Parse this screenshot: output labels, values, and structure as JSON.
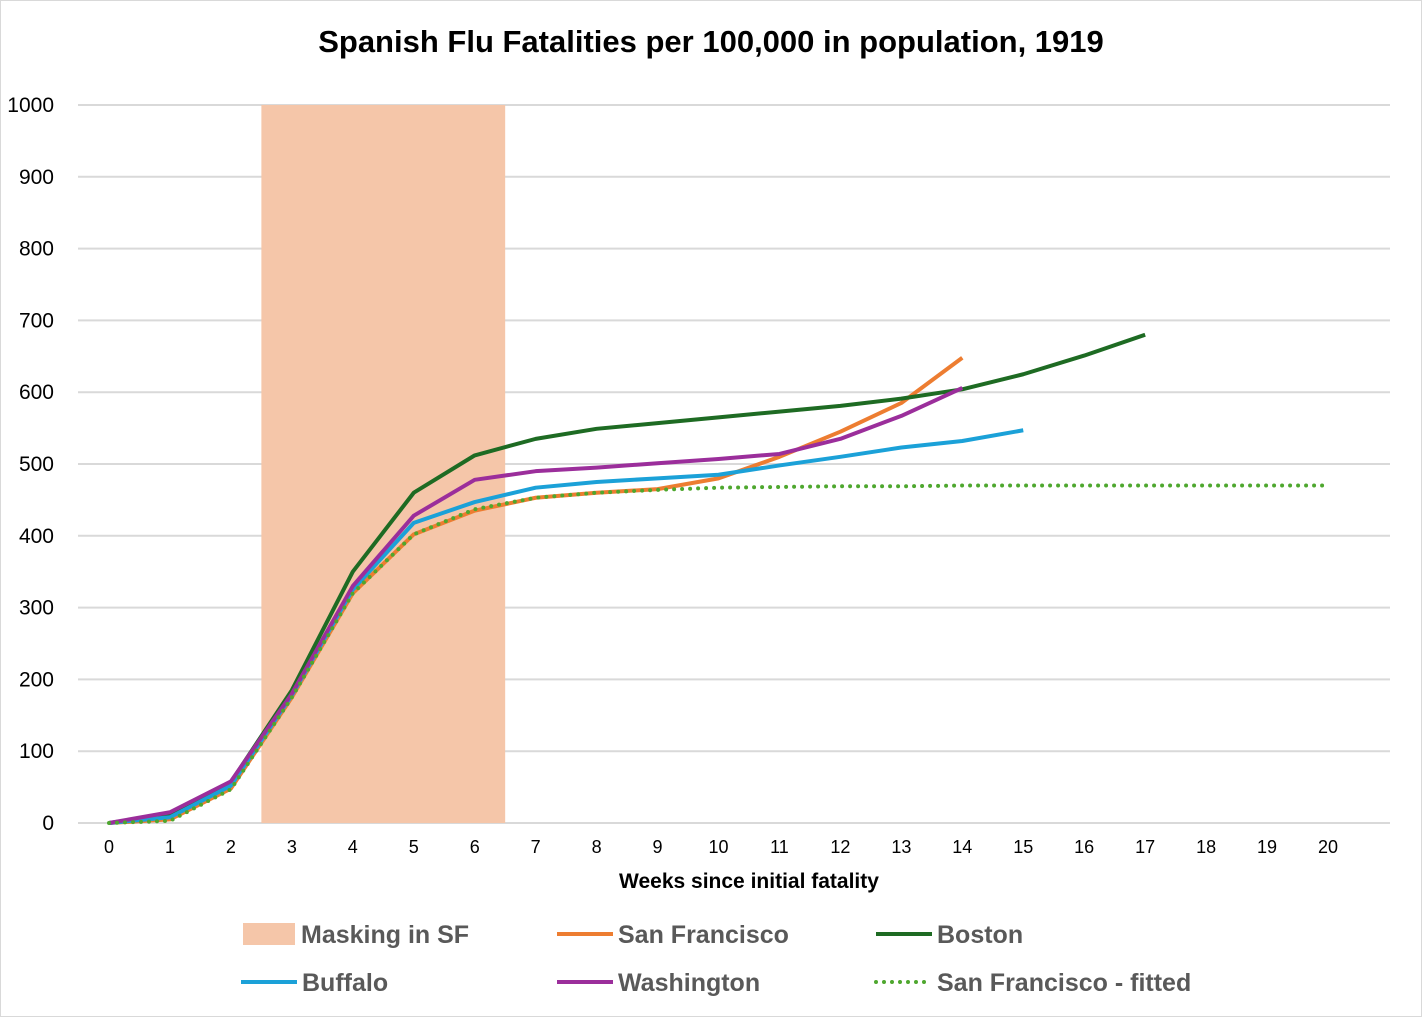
{
  "chart_data": {
    "type": "line",
    "title": "Spanish Flu Fatalities per 100,000 in population, 1919",
    "xlabel": "Weeks since initial fatality",
    "ylabel": "",
    "xlim": [
      0,
      20
    ],
    "ylim": [
      0,
      1000
    ],
    "x_ticks": [
      0,
      1,
      2,
      3,
      4,
      5,
      6,
      7,
      8,
      9,
      10,
      11,
      12,
      13,
      14,
      15,
      16,
      17,
      18,
      19,
      20
    ],
    "y_ticks": [
      0,
      100,
      200,
      300,
      400,
      500,
      600,
      700,
      800,
      900,
      1000
    ],
    "grid": "horizontal",
    "legend_position": "bottom",
    "shaded_region": {
      "name": "Masking in SF",
      "x_start": 2.5,
      "x_end": 6.5,
      "color": "#F5C6A9"
    },
    "series": [
      {
        "name": "San Francisco",
        "color": "#ED7D31",
        "style": "solid",
        "x": [
          0,
          1,
          2,
          3,
          4,
          5,
          6,
          7,
          8,
          9,
          10,
          11,
          12,
          13,
          14
        ],
        "values": [
          0,
          5,
          48,
          175,
          320,
          402,
          435,
          453,
          460,
          465,
          480,
          510,
          545,
          585,
          648
        ]
      },
      {
        "name": "Boston",
        "color": "#1E6B23",
        "style": "solid",
        "x": [
          0,
          1,
          2,
          3,
          4,
          5,
          6,
          7,
          8,
          9,
          10,
          11,
          12,
          13,
          14,
          15,
          16,
          17
        ],
        "values": [
          0,
          12,
          57,
          185,
          350,
          460,
          512,
          535,
          549,
          557,
          565,
          573,
          581,
          591,
          604,
          625,
          651,
          680
        ]
      },
      {
        "name": "Buffalo",
        "color": "#1BA1D8",
        "style": "solid",
        "x": [
          0,
          1,
          2,
          3,
          4,
          5,
          6,
          7,
          8,
          9,
          10,
          11,
          12,
          13,
          14,
          15
        ],
        "values": [
          0,
          8,
          52,
          178,
          325,
          418,
          447,
          467,
          475,
          480,
          485,
          498,
          510,
          523,
          532,
          547
        ]
      },
      {
        "name": "Washington",
        "color": "#9B2E9B",
        "style": "solid",
        "x": [
          0,
          1,
          2,
          3,
          4,
          5,
          6,
          7,
          8,
          9,
          10,
          11,
          12,
          13,
          14
        ],
        "values": [
          0,
          15,
          58,
          180,
          330,
          428,
          478,
          490,
          495,
          501,
          507,
          514,
          535,
          567,
          606
        ]
      },
      {
        "name": "San Francisco - fitted",
        "color": "#4EA72E",
        "style": "dotted",
        "x": [
          0,
          1,
          2,
          3,
          4,
          5,
          6,
          7,
          8,
          9,
          10,
          11,
          12,
          13,
          14,
          15,
          16,
          17,
          18,
          19,
          20
        ],
        "values": [
          0,
          3,
          47,
          175,
          320,
          402,
          437,
          453,
          460,
          464,
          467,
          468,
          469,
          469,
          470,
          470,
          470,
          470,
          470,
          470,
          470
        ]
      }
    ],
    "legend": [
      "Masking in SF",
      "San Francisco",
      "Boston",
      "Buffalo",
      "Washington",
      "San Francisco - fitted"
    ]
  }
}
